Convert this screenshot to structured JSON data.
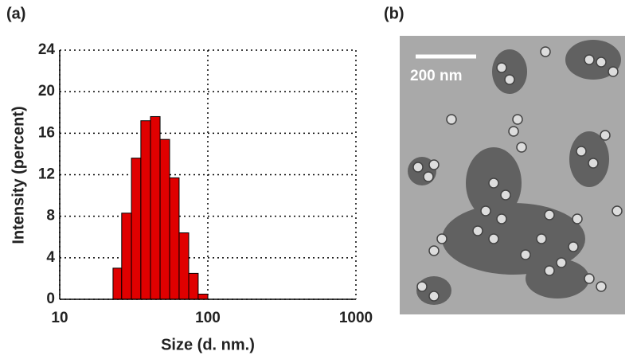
{
  "chart_data": {
    "type": "histogram",
    "xlabel": "Size (d. nm.)",
    "ylabel": "Intensity (percent)",
    "bins": [
      22.9,
      26.2,
      30.5,
      35.3,
      41.0,
      47.6,
      55.2,
      64.0,
      74.3,
      86.1,
      100
    ],
    "values": [
      3.0,
      8.3,
      13.6,
      17.2,
      17.6,
      15.4,
      11.7,
      6.4,
      2.5,
      0.5
    ],
    "color": "#e00000",
    "xscale": "log",
    "xlim": [
      10,
      1000
    ],
    "xticks": [
      10,
      100,
      1000
    ],
    "ylim": [
      0,
      24
    ],
    "yticks": [
      0,
      4,
      8,
      12,
      16,
      20,
      24
    ],
    "grid": true
  },
  "panel_labels": [
    "(a)",
    "(b)"
  ],
  "image": {
    "scale_bar": "200 nm"
  }
}
